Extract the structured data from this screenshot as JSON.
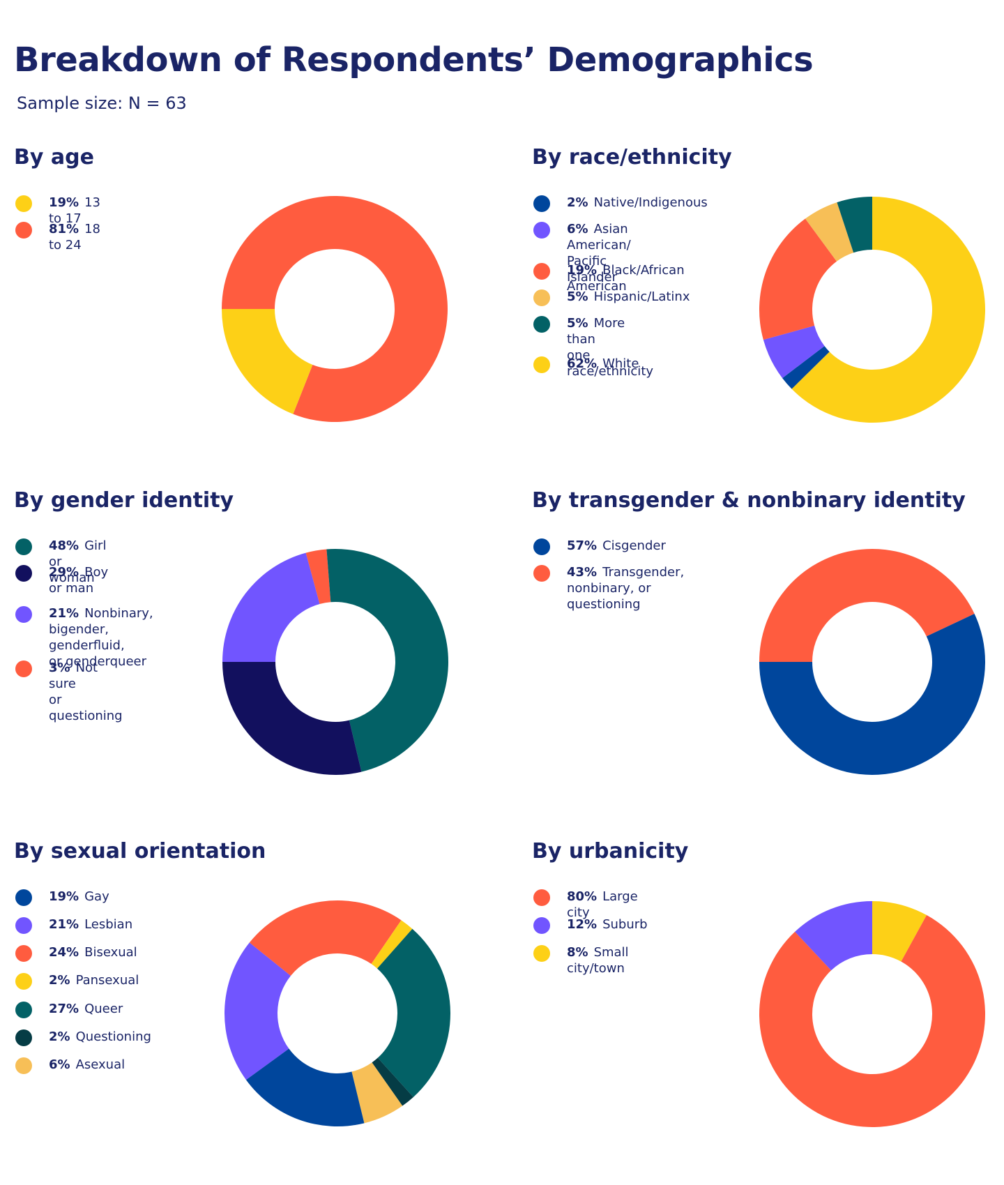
{
  "title": "Breakdown of Respondents’ Demographics",
  "subtitle": "Sample size: N = 63",
  "colors": {
    "yellow": "#fdd017",
    "orange": "#ff5c3f",
    "navy": "#12105e",
    "teal": "#036166",
    "blue": "#00469c",
    "purple": "#7155ff",
    "peach": "#f7bf57",
    "darkteal": "#053c45"
  },
  "chart_data": [
    {
      "type": "pie",
      "title": "By age",
      "labels": [
        "13 to 17",
        "18 to 24"
      ],
      "pct_labels": [
        "19%",
        "81%"
      ],
      "values": [
        19,
        81
      ],
      "colors": [
        "#fdd017",
        "#ff5c3f"
      ],
      "drawing_order": [
        1,
        0
      ]
    },
    {
      "type": "pie",
      "title": "By race/ethnicity",
      "labels": [
        "Native/Indigenous",
        "Asian American/\nPacific Islander",
        "Black/African American",
        "Hispanic/Latinx",
        "More than\none race/ethnicity",
        "White"
      ],
      "pct_labels": [
        "2%",
        "6%",
        "19%",
        "5%",
        "5%",
        "62%"
      ],
      "values": [
        2,
        6,
        19,
        5,
        5,
        62
      ],
      "colors": [
        "#00469c",
        "#7155ff",
        "#ff5c3f",
        "#f7bf57",
        "#036166",
        "#fdd017"
      ],
      "drawing_order": [
        5,
        0,
        1,
        2,
        3,
        4
      ]
    },
    {
      "type": "pie",
      "title": "By gender identity",
      "labels": [
        "Girl or woman",
        "Boy or man",
        "Nonbinary,\nbigender, genderfluid,\nor genderqueer",
        "Not sure\nor questioning"
      ],
      "pct_labels": [
        "48%",
        "29%",
        "21%",
        "3%"
      ],
      "values": [
        48,
        29,
        21,
        3
      ],
      "colors": [
        "#036166",
        "#12105e",
        "#7155ff",
        "#ff5c3f"
      ],
      "drawing_order": [
        2,
        3,
        0,
        1
      ]
    },
    {
      "type": "pie",
      "title": "By transgender & nonbinary identity",
      "labels": [
        "Cisgender",
        "Transgender,\nnonbinary, or\nquestioning"
      ],
      "pct_labels": [
        "57%",
        "43%"
      ],
      "values": [
        57,
        43
      ],
      "colors": [
        "#00469c",
        "#ff5c3f"
      ],
      "drawing_order": [
        1,
        0
      ]
    },
    {
      "type": "pie",
      "title": "By sexual orientation",
      "labels": [
        "Gay",
        "Lesbian",
        "Bisexual",
        "Pansexual",
        "Queer",
        "Questioning",
        "Asexual"
      ],
      "pct_labels": [
        "19%",
        "21%",
        "24%",
        "2%",
        "27%",
        "2%",
        "6%"
      ],
      "values": [
        19,
        21,
        24,
        2,
        27,
        2,
        6
      ],
      "colors": [
        "#00469c",
        "#7155ff",
        "#ff5c3f",
        "#fdd017",
        "#036166",
        "#053c45",
        "#f7bf57"
      ],
      "drawing_order": [
        1,
        2,
        3,
        4,
        5,
        6,
        0
      ]
    },
    {
      "type": "pie",
      "title": "By urbanicity",
      "labels": [
        "Large city",
        "Suburb",
        "Small city/town"
      ],
      "pct_labels": [
        "80%",
        "12%",
        "8%"
      ],
      "values": [
        80,
        12,
        8
      ],
      "colors": [
        "#ff5c3f",
        "#7155ff",
        "#fdd017"
      ],
      "drawing_order": [
        2,
        0,
        1
      ]
    }
  ]
}
